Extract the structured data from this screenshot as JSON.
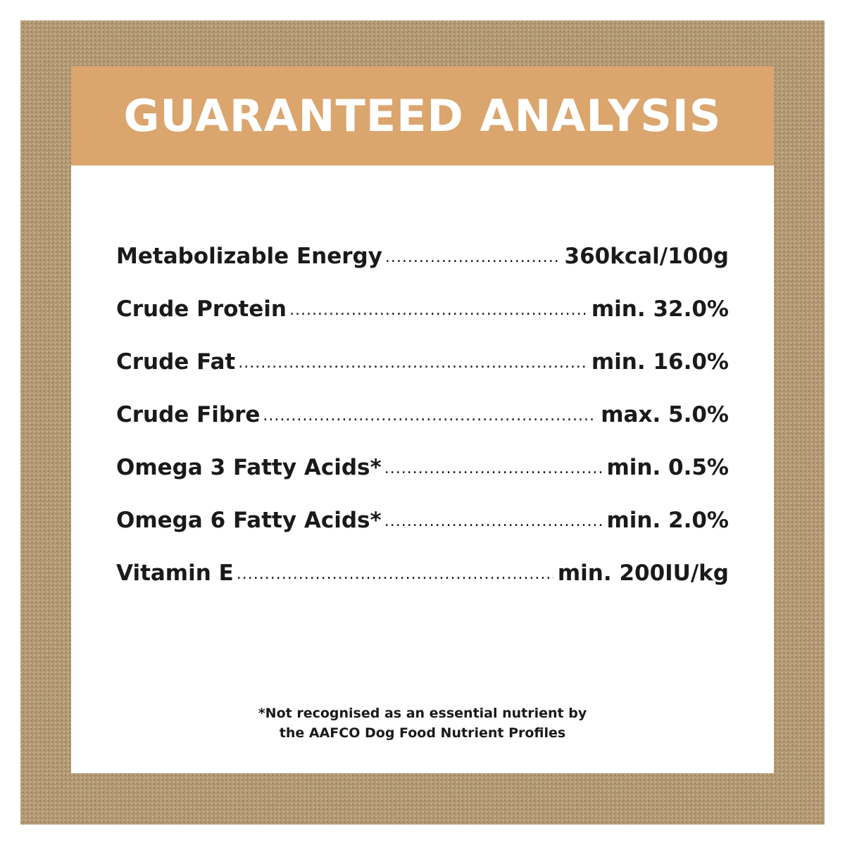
{
  "colors": {
    "frame": "#b59a72",
    "header_band": "#dba56e",
    "card": "#ffffff",
    "text": "#1a1a1a"
  },
  "header": {
    "title": "GUARANTEED ANALYSIS"
  },
  "rows": [
    {
      "label": "Metabolizable Energy",
      "value": "360kcal/100g"
    },
    {
      "label": "Crude Protein",
      "value": "min. 32.0%"
    },
    {
      "label": "Crude Fat",
      "value": "min. 16.0%"
    },
    {
      "label": "Crude Fibre",
      "value": "max. 5.0%"
    },
    {
      "label": "Omega 3 Fatty Acids*",
      "value": "min. 0.5%"
    },
    {
      "label": "Omega 6 Fatty Acids*",
      "value": "min. 2.0%"
    },
    {
      "label": "Vitamin E",
      "value": "min. 200IU/kg"
    }
  ],
  "footnote": {
    "line1": "*Not recognised as an essential nutrient by",
    "line2": "the AAFCO Dog Food Nutrient Profiles"
  }
}
